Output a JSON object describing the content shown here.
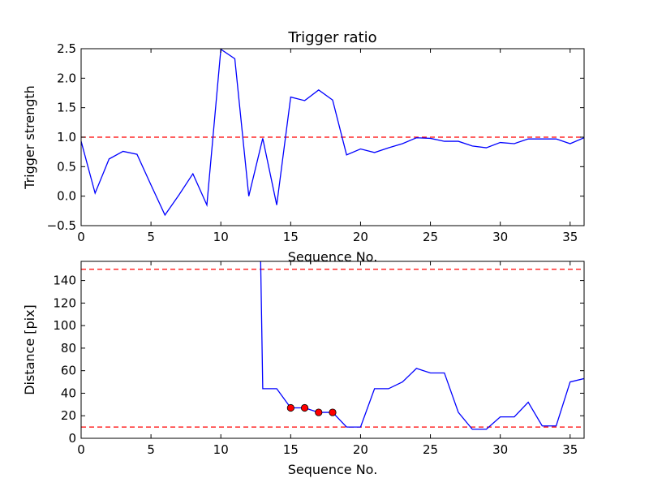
{
  "chart_data": [
    {
      "type": "line",
      "title": "Trigger ratio",
      "xlabel": "Sequence No.",
      "ylabel": "Trigger strength",
      "xlim": [
        0,
        36
      ],
      "ylim": [
        -0.5,
        2.5
      ],
      "xticks": [
        0,
        5,
        10,
        15,
        20,
        25,
        30,
        35
      ],
      "yticks": [
        -0.5,
        0.0,
        0.5,
        1.0,
        1.5,
        2.0,
        2.5
      ],
      "ytick_labels": [
        "−0.5",
        "0.0",
        "0.5",
        "1.0",
        "1.5",
        "2.0",
        "2.5"
      ],
      "grid": false,
      "series": [
        {
          "color": "#0000ff",
          "x": [
            0,
            1,
            2,
            3,
            4,
            5,
            6,
            7,
            8,
            9,
            10,
            11,
            12,
            13,
            14,
            15,
            16,
            17,
            18,
            19,
            20,
            21,
            22,
            23,
            24,
            25,
            26,
            27,
            28,
            29,
            30,
            31,
            32,
            33,
            34,
            35,
            36
          ],
          "y": [
            0.93,
            0.05,
            0.63,
            0.76,
            0.71,
            0.19,
            -0.32,
            0.02,
            0.38,
            -0.15,
            2.49,
            2.33,
            0.0,
            0.98,
            -0.15,
            1.68,
            1.62,
            1.8,
            1.63,
            0.7,
            0.8,
            0.74,
            0.82,
            0.89,
            0.99,
            0.98,
            0.93,
            0.93,
            0.85,
            0.82,
            0.91,
            0.89,
            0.97,
            0.97,
            0.97,
            0.89,
            0.99
          ]
        }
      ],
      "reference_lines": [
        {
          "axis": "y",
          "value": 1.0,
          "color": "#ff0000",
          "style": "dashed"
        }
      ]
    },
    {
      "type": "line",
      "title": "",
      "xlabel": "Sequence No.",
      "ylabel": "Distance [pix]",
      "xlim": [
        0,
        36
      ],
      "ylim": [
        0,
        157
      ],
      "xticks": [
        0,
        5,
        10,
        15,
        20,
        25,
        30,
        35
      ],
      "yticks": [
        0,
        20,
        40,
        60,
        80,
        100,
        120,
        140
      ],
      "grid": false,
      "series": [
        {
          "color": "#0000ff",
          "x": [
            12.85,
            13,
            14,
            15,
            16,
            17,
            18,
            19,
            20,
            21,
            22,
            23,
            24,
            25,
            26,
            27,
            28,
            29,
            30,
            31,
            32,
            33,
            34,
            35,
            36
          ],
          "y": [
            157,
            44,
            44,
            27,
            27,
            23,
            23,
            10,
            10,
            44,
            44,
            50,
            62,
            58,
            58,
            23,
            8,
            8,
            19,
            19,
            32,
            11,
            11,
            50,
            53
          ]
        },
        {
          "color": "#ff0000",
          "marker": "circle",
          "line": false,
          "x": [
            15,
            16,
            17,
            18
          ],
          "y": [
            27,
            27,
            23,
            23
          ]
        }
      ],
      "reference_lines": [
        {
          "axis": "y",
          "value": 150,
          "color": "#ff0000",
          "style": "dashed"
        },
        {
          "axis": "y",
          "value": 10,
          "color": "#ff0000",
          "style": "dashed"
        }
      ]
    }
  ]
}
